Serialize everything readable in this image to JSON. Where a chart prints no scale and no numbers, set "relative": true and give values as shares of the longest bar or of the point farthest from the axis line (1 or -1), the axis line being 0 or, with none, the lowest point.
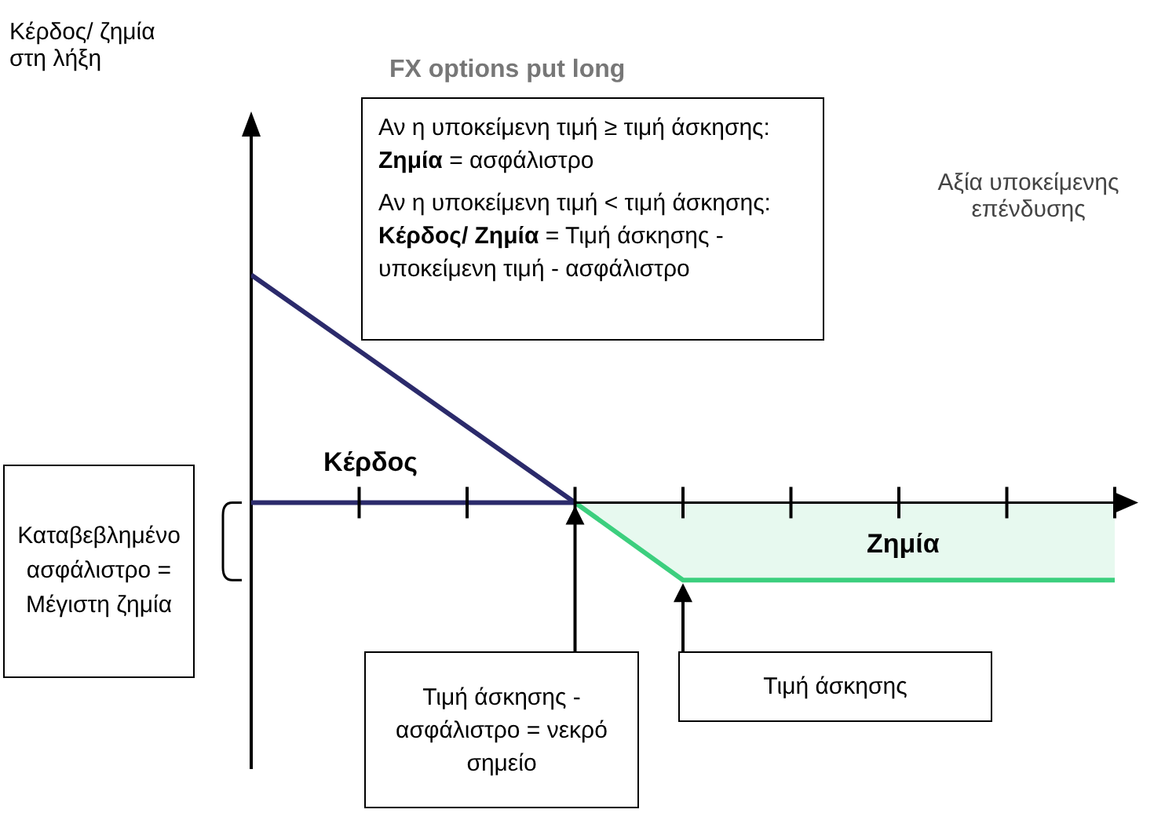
{
  "chart_data": {
    "type": "line",
    "relative": true,
    "title": "FX options put long",
    "xlabel": "Αξία υποκείμενης επένδυσης",
    "categories": [
      null,
      null,
      null,
      null,
      null,
      null,
      null,
      null,
      null
    ],
    "series": [
      {
        "color": "#2b2a6b",
        "values": [
          1,
          0.667,
          0.333,
          0,
          null,
          null,
          null,
          null,
          null
        ]
      },
      {
        "color": "#2b2a6b",
        "values": [
          0,
          0,
          0,
          0,
          null,
          null,
          null,
          null,
          null
        ]
      },
      {
        "type": "area",
        "color": "#3ccf7e",
        "values": [
          null,
          null,
          null,
          0,
          -0.34,
          -0.34,
          -0.34,
          -0.34,
          -0.34
        ]
      }
    ],
    "ref_lines": [
      {
        "axis": "y",
        "value": 0,
        "color": "#000000"
      }
    ],
    "marker": "none",
    "annotations": [
      "Κέρδος/ ζημία στη λήξη",
      "Αν η υποκείμενη τιμή ≥ τιμή άσκησης:",
      "Ζημία = ασφάλιστρο",
      "Αν η υποκείμενη τιμή < τιμή άσκησης:",
      "Κέρδος/ Ζημία = Τιμή άσκησης - υποκείμενη τιμή - ασφάλιστρο",
      "Κέρδος",
      "Ζημία",
      "Καταβεβλημένο ασφάλιστρο = Μέγιστη ζημία",
      "Τιμή άσκησης - ασφάλιστρο = νεκρό σημείο",
      "Τιμή άσκησης"
    ]
  }
}
